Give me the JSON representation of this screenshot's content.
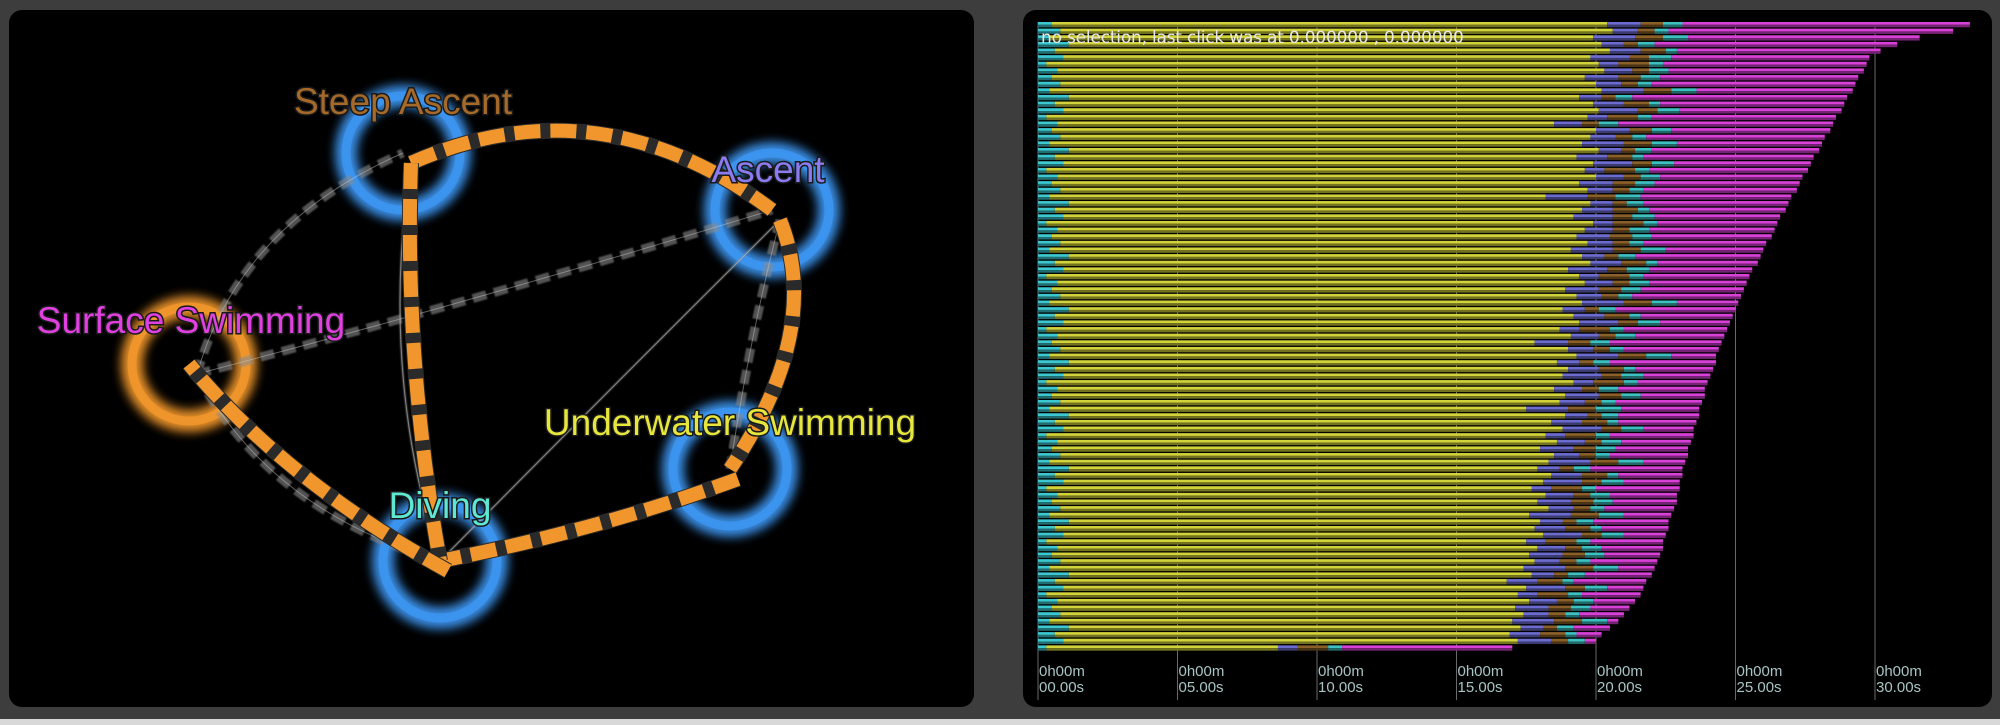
{
  "graph": {
    "nodes": [
      {
        "id": "steep",
        "label": "Steep Ascent",
        "label_color": "#a5692a",
        "ring_color": "#3c95f0"
      },
      {
        "id": "ascent",
        "label": "Ascent",
        "label_color": "#8a7cf0",
        "ring_color": "#3c95f0"
      },
      {
        "id": "surface",
        "label": "Surface Swimming",
        "label_color": "#e040e0",
        "ring_color": "#f0962c"
      },
      {
        "id": "underwater",
        "label": "Underwater Swimming",
        "label_color": "#e6e63c",
        "ring_color": "#3c95f0"
      },
      {
        "id": "diving",
        "label": "Diving",
        "label_color": "#5ee8d4",
        "ring_color": "#3c95f0"
      }
    ],
    "edges": [
      {
        "from": "surface",
        "to": "steep",
        "kind": "minor"
      },
      {
        "from": "surface",
        "to": "ascent",
        "kind": "minor"
      },
      {
        "from": "ascent",
        "to": "diving",
        "kind": "minor"
      },
      {
        "from": "steep",
        "to": "diving",
        "kind": "minor"
      },
      {
        "from": "ascent",
        "to": "underwater",
        "kind": "minor"
      },
      {
        "from": "surface",
        "to": "diving",
        "kind": "minor"
      },
      {
        "from": "steep",
        "to": "ascent",
        "kind": "major"
      },
      {
        "from": "ascent",
        "to": "underwater",
        "kind": "major"
      },
      {
        "from": "underwater",
        "to": "diving",
        "kind": "major"
      },
      {
        "from": "steep",
        "to": "diving",
        "kind": "major"
      },
      {
        "from": "diving",
        "to": "surface",
        "kind": "major"
      }
    ],
    "edge_colors": {
      "major": "#f0962c",
      "minor": "#8a8a8a"
    }
  },
  "timeline": {
    "status_text": "no selection, last click was at 0.000000 , 0.000000"
  },
  "chart_data": {
    "type": "bar",
    "orientation": "horizontal",
    "stacked": true,
    "x_unit": "seconds",
    "xlim": [
      0,
      33.5
    ],
    "grid": true,
    "ticks": [
      {
        "value": 0,
        "line1": "0h00m",
        "line2": "00.00s"
      },
      {
        "value": 5,
        "line1": "0h00m",
        "line2": "05.00s"
      },
      {
        "value": 10,
        "line1": "0h00m",
        "line2": "10.00s"
      },
      {
        "value": 15,
        "line1": "0h00m",
        "line2": "15.00s"
      },
      {
        "value": 20,
        "line1": "0h00m",
        "line2": "20.00s"
      },
      {
        "value": 25,
        "line1": "0h00m",
        "line2": "25.00s"
      },
      {
        "value": 30,
        "line1": "0h00m",
        "line2": "30.00s"
      }
    ],
    "segment_colors": [
      "#3cc8d0",
      "#d2d23a",
      "#6c6cd0",
      "#8a6028",
      "#3cc0c0",
      "#d840d8"
    ],
    "segment_end_times": [
      [
        0.5,
        20.4,
        21.6,
        22.4,
        23.1,
        33.4
      ],
      [
        0.8,
        20.6,
        21.5,
        22.1,
        22.6,
        32.8
      ],
      [
        0.4,
        19.9,
        21.4,
        22.4,
        23.3,
        31.6
      ],
      [
        1.1,
        20.2,
        21.0,
        21.5,
        22.1,
        30.8
      ],
      [
        0.6,
        20.5,
        21.6,
        22.5,
        22.9,
        30.2
      ],
      [
        0.9,
        19.8,
        21.2,
        21.9,
        22.7,
        29.8
      ],
      [
        0.3,
        20.1,
        20.8,
        21.9,
        22.4,
        29.7
      ],
      [
        0.7,
        20.3,
        21.3,
        21.9,
        22.6,
        29.6
      ],
      [
        0.5,
        19.6,
        20.8,
        21.6,
        22.3,
        29.4
      ],
      [
        0.8,
        20.0,
        20.9,
        21.5,
        22.0,
        29.3
      ],
      [
        0.4,
        20.2,
        21.7,
        22.7,
        23.6,
        29.2
      ],
      [
        1.1,
        19.4,
        20.2,
        20.7,
        21.3,
        29.0
      ],
      [
        0.6,
        19.9,
        21.0,
        21.9,
        22.3,
        28.9
      ],
      [
        0.9,
        20.1,
        21.5,
        22.2,
        23.0,
        28.8
      ],
      [
        0.3,
        19.7,
        20.4,
        21.5,
        22.0,
        28.6
      ],
      [
        0.7,
        18.5,
        19.5,
        20.1,
        20.8,
        28.5
      ],
      [
        0.5,
        20.0,
        21.2,
        22.0,
        22.7,
        28.4
      ],
      [
        0.8,
        19.8,
        20.7,
        21.3,
        21.8,
        28.2
      ],
      [
        0.4,
        19.5,
        21.0,
        22.0,
        22.9,
        28.1
      ],
      [
        1.1,
        20.1,
        20.9,
        21.4,
        22.0,
        28.0
      ],
      [
        0.6,
        19.3,
        20.4,
        21.3,
        21.7,
        27.8
      ],
      [
        0.9,
        19.9,
        21.3,
        22.0,
        22.8,
        27.7
      ],
      [
        0.3,
        19.6,
        20.3,
        21.4,
        21.9,
        27.6
      ],
      [
        0.7,
        20.0,
        21.0,
        21.6,
        22.3,
        27.4
      ],
      [
        0.5,
        19.4,
        20.6,
        21.4,
        22.1,
        27.3
      ],
      [
        0.8,
        19.7,
        20.6,
        21.2,
        21.7,
        27.2
      ],
      [
        0.4,
        18.2,
        19.7,
        20.7,
        21.6,
        27.0
      ],
      [
        1.1,
        19.8,
        20.6,
        21.1,
        21.7,
        26.9
      ],
      [
        0.6,
        19.5,
        20.6,
        21.5,
        21.9,
        26.8
      ],
      [
        0.9,
        19.2,
        20.6,
        21.3,
        22.1,
        26.6
      ],
      [
        0.3,
        19.9,
        20.6,
        21.7,
        22.2,
        26.5
      ],
      [
        0.7,
        19.6,
        20.6,
        21.2,
        21.9,
        26.4
      ],
      [
        0.5,
        19.3,
        20.5,
        21.3,
        22.0,
        26.3
      ],
      [
        0.8,
        19.7,
        20.6,
        21.2,
        21.7,
        26.1
      ],
      [
        0.4,
        19.1,
        20.6,
        21.6,
        22.5,
        26.0
      ],
      [
        1.1,
        19.5,
        20.3,
        20.8,
        21.4,
        25.9
      ],
      [
        0.6,
        19.8,
        20.9,
        21.8,
        22.2,
        25.8
      ],
      [
        0.9,
        19.0,
        20.4,
        21.1,
        21.9,
        25.6
      ],
      [
        0.3,
        19.4,
        20.1,
        21.2,
        21.7,
        25.5
      ],
      [
        0.7,
        19.6,
        20.6,
        21.2,
        21.9,
        25.4
      ],
      [
        0.5,
        18.9,
        20.1,
        20.9,
        21.6,
        25.3
      ],
      [
        0.8,
        19.3,
        20.2,
        20.8,
        21.3,
        25.2
      ],
      [
        0.4,
        19.5,
        21.0,
        22.0,
        22.9,
        25.1
      ],
      [
        1.1,
        18.8,
        19.6,
        20.1,
        20.7,
        25.0
      ],
      [
        0.6,
        19.2,
        20.3,
        21.2,
        21.6,
        24.9
      ],
      [
        0.9,
        19.4,
        20.8,
        21.5,
        22.3,
        24.8
      ],
      [
        0.3,
        18.7,
        19.4,
        20.5,
        21.0,
        24.7
      ],
      [
        0.7,
        19.1,
        20.1,
        20.7,
        21.4,
        24.6
      ],
      [
        0.5,
        17.8,
        19.0,
        19.8,
        20.5,
        24.5
      ],
      [
        0.8,
        19.0,
        19.9,
        20.5,
        21.0,
        24.4
      ],
      [
        0.4,
        19.3,
        20.8,
        21.8,
        22.7,
        24.3
      ],
      [
        1.1,
        18.6,
        19.4,
        19.9,
        20.5,
        24.3
      ],
      [
        0.6,
        19.0,
        20.1,
        21.0,
        21.4,
        24.2
      ],
      [
        0.9,
        18.8,
        20.2,
        20.9,
        21.7,
        24.1
      ],
      [
        0.3,
        19.2,
        19.9,
        21.0,
        21.5,
        24.0
      ],
      [
        0.7,
        18.5,
        19.5,
        20.1,
        20.8,
        23.9
      ],
      [
        0.5,
        18.9,
        20.1,
        20.9,
        21.6,
        23.9
      ],
      [
        0.8,
        18.7,
        19.6,
        20.2,
        20.7,
        23.8
      ],
      [
        0.4,
        17.5,
        19.0,
        20.0,
        20.9,
        23.7
      ],
      [
        1.1,
        18.9,
        19.7,
        20.2,
        20.8,
        23.7
      ],
      [
        0.6,
        18.4,
        19.5,
        20.4,
        20.8,
        23.6
      ],
      [
        0.9,
        18.8,
        20.2,
        20.9,
        21.7,
        23.5
      ],
      [
        0.3,
        18.2,
        18.9,
        20.0,
        20.5,
        23.5
      ],
      [
        0.7,
        18.6,
        19.6,
        20.2,
        20.9,
        23.4
      ],
      [
        0.5,
        18.0,
        19.2,
        20.0,
        20.7,
        23.3
      ],
      [
        0.8,
        18.5,
        19.4,
        20.0,
        20.5,
        23.3
      ],
      [
        0.4,
        18.3,
        19.8,
        20.8,
        21.7,
        23.2
      ],
      [
        1.1,
        17.9,
        18.7,
        19.2,
        19.8,
        23.1
      ],
      [
        0.6,
        18.4,
        19.5,
        20.4,
        20.8,
        23.1
      ],
      [
        0.9,
        18.1,
        19.5,
        20.2,
        21.0,
        23.0
      ],
      [
        0.3,
        17.7,
        18.4,
        19.5,
        20.0,
        23.0
      ],
      [
        0.7,
        18.2,
        19.2,
        19.8,
        20.5,
        22.9
      ],
      [
        0.5,
        17.9,
        19.1,
        19.9,
        20.6,
        22.9
      ],
      [
        0.8,
        18.3,
        19.2,
        19.8,
        20.3,
        22.8
      ],
      [
        0.4,
        17.6,
        19.1,
        20.1,
        21.0,
        22.7
      ],
      [
        1.1,
        18.0,
        18.8,
        19.3,
        19.9,
        22.6
      ],
      [
        0.6,
        17.8,
        18.9,
        19.8,
        20.2,
        22.6
      ],
      [
        0.9,
        18.1,
        19.5,
        20.2,
        21.0,
        22.5
      ],
      [
        0.3,
        17.5,
        18.2,
        19.3,
        19.8,
        22.4
      ],
      [
        0.7,
        17.9,
        18.9,
        19.5,
        20.2,
        22.4
      ],
      [
        0.5,
        17.6,
        18.8,
        19.6,
        20.3,
        22.3
      ],
      [
        0.8,
        17.8,
        18.7,
        19.3,
        19.8,
        22.2
      ],
      [
        0.4,
        17.4,
        18.9,
        19.9,
        20.8,
        22.1
      ],
      [
        1.1,
        17.7,
        18.5,
        19.0,
        19.6,
        22.0
      ],
      [
        0.6,
        16.8,
        17.9,
        18.8,
        19.2,
        21.8
      ],
      [
        0.9,
        17.5,
        18.9,
        19.6,
        20.4,
        21.7
      ],
      [
        0.3,
        17.2,
        17.9,
        19.0,
        19.5,
        21.6
      ],
      [
        0.7,
        17.6,
        18.6,
        19.2,
        19.9,
        21.4
      ],
      [
        0.5,
        17.1,
        18.3,
        19.1,
        19.8,
        21.2
      ],
      [
        0.8,
        17.4,
        18.3,
        18.9,
        19.4,
        21.0
      ],
      [
        0.4,
        17.0,
        18.5,
        19.5,
        20.4,
        20.8
      ],
      [
        1.1,
        17.3,
        18.1,
        18.6,
        19.2,
        20.5
      ],
      [
        0.6,
        16.9,
        18.0,
        18.9,
        19.3,
        20.2
      ],
      [
        0.9,
        17.2,
        18.4,
        19.0,
        19.6,
        20.0
      ],
      [
        0.3,
        8.6,
        9.3,
        10.4,
        10.9,
        17.0
      ]
    ]
  }
}
